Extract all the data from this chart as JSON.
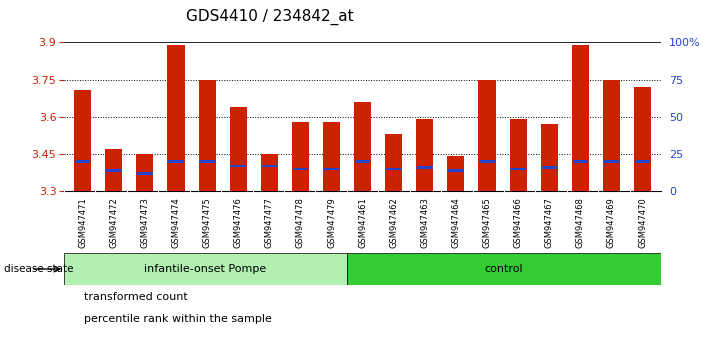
{
  "title": "GDS4410 / 234842_at",
  "samples": [
    "GSM947471",
    "GSM947472",
    "GSM947473",
    "GSM947474",
    "GSM947475",
    "GSM947476",
    "GSM947477",
    "GSM947478",
    "GSM947479",
    "GSM947461",
    "GSM947462",
    "GSM947463",
    "GSM947464",
    "GSM947465",
    "GSM947466",
    "GSM947467",
    "GSM947468",
    "GSM947469",
    "GSM947470"
  ],
  "transformed_count": [
    3.71,
    3.47,
    3.45,
    3.89,
    3.75,
    3.64,
    3.45,
    3.58,
    3.58,
    3.66,
    3.53,
    3.59,
    3.44,
    3.75,
    3.59,
    3.57,
    3.89,
    3.75,
    3.72
  ],
  "percentile_rank_pct": [
    20,
    14,
    12,
    20,
    20,
    17,
    17,
    15,
    15,
    20,
    15,
    16,
    14,
    20,
    15,
    16,
    20,
    20,
    20
  ],
  "group1_count": 9,
  "group2_count": 10,
  "group1_label": "infantile-onset Pompe",
  "group2_label": "control",
  "group1_color": "#b2f0b2",
  "group2_color": "#33cc33",
  "ymin": 3.3,
  "ymax": 3.9,
  "yticks": [
    3.3,
    3.45,
    3.6,
    3.75,
    3.9
  ],
  "ytick_labels": [
    "3.3",
    "3.45",
    "3.6",
    "3.75",
    "3.9"
  ],
  "right_yticks_pct": [
    0,
    25,
    50,
    75,
    100
  ],
  "bar_color": "#cc2200",
  "blue_color": "#2244cc",
  "bar_width": 0.55,
  "base_value": 3.3,
  "tick_bg_color": "#d8d8d8",
  "axis_color_left": "#cc2200",
  "axis_color_right": "#2244cc",
  "grid_ticks": [
    3.45,
    3.6,
    3.75
  ],
  "title_fontsize": 11
}
